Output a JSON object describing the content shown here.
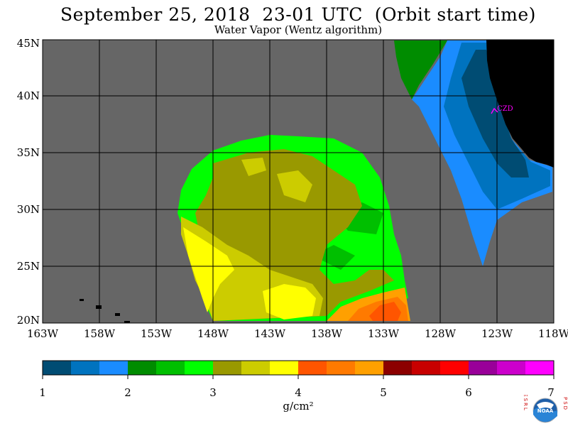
{
  "header": {
    "title": "September 25, 2018  23-01 UTC  (Orbit start time)",
    "subtitle": "Water Vapor (Wentz algorithm)"
  },
  "map": {
    "lat_labels": [
      "45N",
      "40N",
      "35N",
      "30N",
      "25N",
      "20N"
    ],
    "lon_labels": [
      "163W",
      "158W",
      "153W",
      "148W",
      "143W",
      "138W",
      "133W",
      "128W",
      "123W",
      "118W"
    ],
    "station_label": "CZD",
    "colors": {
      "missing": "#666666",
      "land": "#000000",
      "grid": "#000000",
      "station": "#ff00ff"
    }
  },
  "colorbar": {
    "colors": [
      "#004c73",
      "#0073bf",
      "#1a8cff",
      "#008c00",
      "#00bf00",
      "#00ff00",
      "#999900",
      "#cccc00",
      "#ffff00",
      "#ff5500",
      "#ff7a00",
      "#ffa000",
      "#8c0000",
      "#c80000",
      "#ff0000",
      "#990099",
      "#cc00cc",
      "#ff00ff"
    ],
    "labels": [
      "1",
      "2",
      "3",
      "4",
      "5",
      "6",
      "7"
    ],
    "units": "g/cm²"
  },
  "logo": {
    "left_letters": "ESRL",
    "right_letters": "PSD",
    "center_text": "NOAA"
  }
}
